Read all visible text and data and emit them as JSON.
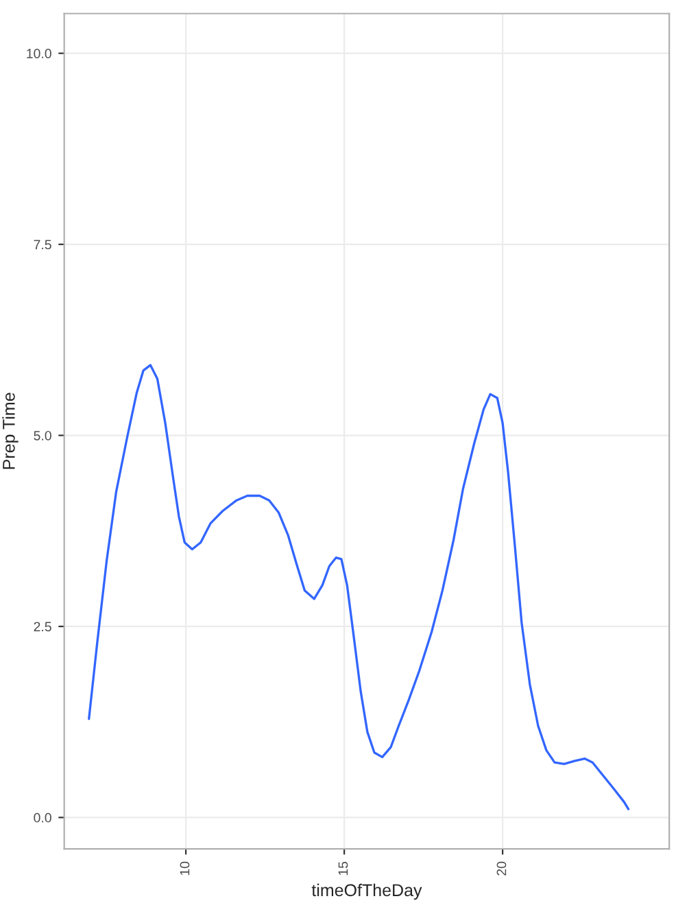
{
  "chart_data": {
    "type": "line",
    "xlabel": "timeOfTheDay",
    "ylabel": "Prep Time",
    "x": [
      6.94,
      7.2,
      7.5,
      7.8,
      8.15,
      8.45,
      8.66,
      8.88,
      9.1,
      9.35,
      9.6,
      9.78,
      9.96,
      10.2,
      10.47,
      10.78,
      11.16,
      11.6,
      11.94,
      12.33,
      12.63,
      12.93,
      13.23,
      13.5,
      13.75,
      14.05,
      14.31,
      14.53,
      14.74,
      14.91,
      15.09,
      15.3,
      15.52,
      15.73,
      15.95,
      16.2,
      16.47,
      16.72,
      17.03,
      17.37,
      17.76,
      18.1,
      18.45,
      18.75,
      19.1,
      19.4,
      19.61,
      19.83,
      20.0,
      20.17,
      20.39,
      20.6,
      20.86,
      21.12,
      21.38,
      21.64,
      21.94,
      22.28,
      22.59,
      22.84,
      23.15,
      23.5,
      23.84,
      23.97
    ],
    "series": [
      {
        "color": "#3366ff",
        "values": [
          1.29,
          2.28,
          3.36,
          4.26,
          4.98,
          5.56,
          5.85,
          5.92,
          5.74,
          5.16,
          4.44,
          3.94,
          3.6,
          3.51,
          3.6,
          3.85,
          4.01,
          4.15,
          4.21,
          4.21,
          4.15,
          3.99,
          3.69,
          3.31,
          2.97,
          2.86,
          3.04,
          3.29,
          3.4,
          3.38,
          3.04,
          2.37,
          1.65,
          1.12,
          0.85,
          0.79,
          0.92,
          1.2,
          1.53,
          1.92,
          2.43,
          2.97,
          3.63,
          4.3,
          4.89,
          5.34,
          5.54,
          5.49,
          5.16,
          4.53,
          3.54,
          2.55,
          1.74,
          1.2,
          0.88,
          0.72,
          0.7,
          0.74,
          0.77,
          0.72,
          0.56,
          0.38,
          0.2,
          0.11
        ]
      }
    ],
    "xlim": [
      6.16,
      25.26
    ],
    "ylim": [
      -0.41,
      10.52
    ],
    "xticks": [
      10,
      15,
      20
    ],
    "yticks": [
      {
        "value": 0,
        "label": "0.0"
      },
      {
        "value": 2.5,
        "label": "2.5"
      },
      {
        "value": 5,
        "label": "5.0"
      },
      {
        "value": 7.5,
        "label": "7.5"
      },
      {
        "value": 10,
        "label": "10.0"
      }
    ],
    "grid": true,
    "marker": "none",
    "line_style": "solid"
  }
}
